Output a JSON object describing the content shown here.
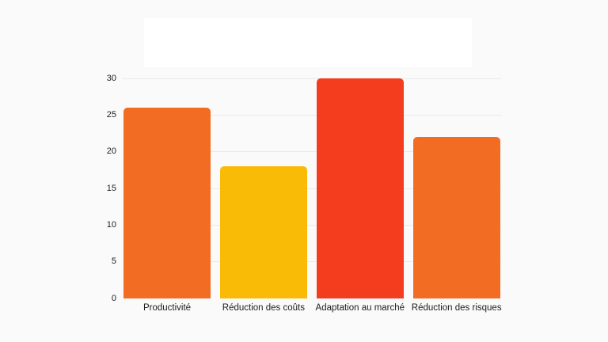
{
  "page": {
    "background_color": "#FAFAFA",
    "title_box": {
      "text": "",
      "background_color": "#FFFFFF"
    }
  },
  "chart_data": {
    "type": "bar",
    "title": "",
    "categories": [
      "Productivité",
      "Réduction des coûts",
      "Adaptation au marché",
      "Réduction des risques"
    ],
    "values": [
      26,
      18,
      30,
      22
    ],
    "bar_colors": [
      "#F26C23",
      "#FABB06",
      "#F43C1E",
      "#F26C23"
    ],
    "xlabel": "",
    "ylabel": "",
    "ylim": [
      0,
      30
    ],
    "yticks": [
      0,
      5,
      10,
      15,
      20,
      25,
      30
    ],
    "grid": true,
    "legend": false,
    "gridline_color": "#E9E9E9",
    "text_color": "#1C1C1C"
  }
}
